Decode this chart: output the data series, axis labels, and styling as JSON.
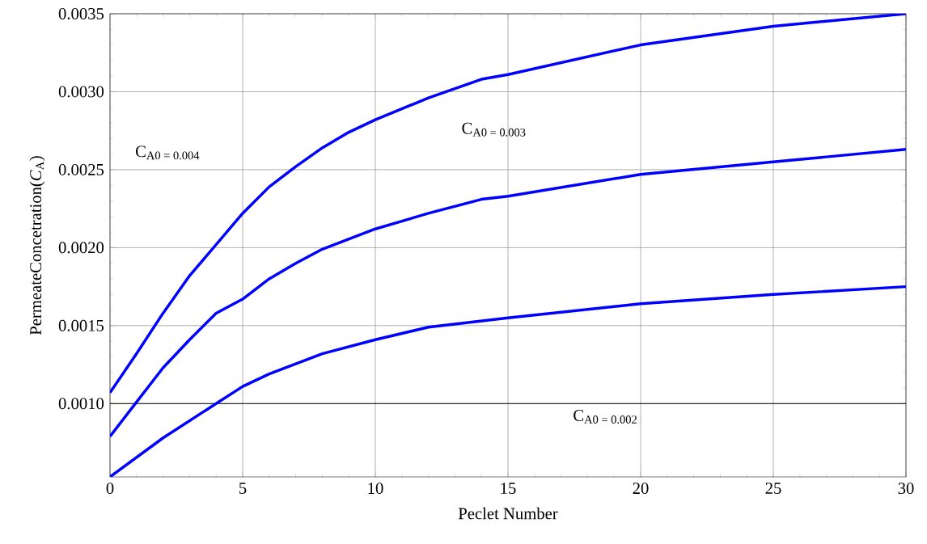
{
  "chart_data": {
    "type": "line",
    "xlabel": "Peclet Number",
    "ylabel": "PermeateConcetration(*C*$_{A}$)",
    "xlim": [
      0,
      30
    ],
    "xticks": [
      0,
      5,
      10,
      15,
      20,
      25,
      30
    ],
    "ylim": [
      0.00053,
      0.0035
    ],
    "yticks": [
      {
        "value": 0.001,
        "label": "0.0010"
      },
      {
        "value": 0.0015,
        "label": "0.0015"
      },
      {
        "value": 0.002,
        "label": "0.0020"
      },
      {
        "value": 0.0025,
        "label": "0.0025"
      },
      {
        "value": 0.003,
        "label": "0.0030"
      },
      {
        "value": 0.0035,
        "label": "0.0035"
      }
    ],
    "grid": true,
    "marker": "none",
    "line_style": "solid",
    "ref_lines": [
      {
        "axis": "y",
        "value": 0.001,
        "color": "#000000"
      }
    ],
    "annotations": [
      "C$_{A0 = 0.004}$",
      "C$_{A0 = 0.003}$",
      "C$_{A0 = 0.002}$"
    ],
    "series": [
      {
        "color": "#0000ff",
        "x": [
          0,
          1,
          2,
          3,
          4,
          5,
          6,
          7,
          8,
          9,
          10,
          12,
          14,
          15,
          20,
          25,
          30
        ],
        "values": [
          0.00107,
          0.00132,
          0.00158,
          0.00182,
          0.00202,
          0.00222,
          0.00239,
          0.00252,
          0.00264,
          0.00274,
          0.00282,
          0.00296,
          0.00308,
          0.00311,
          0.0033,
          0.00342,
          0.0035
        ]
      },
      {
        "color": "#0000ff",
        "x": [
          0,
          1,
          2,
          3,
          4,
          5,
          6,
          7,
          8,
          10,
          12,
          14,
          15,
          20,
          25,
          30
        ],
        "values": [
          0.00079,
          0.00101,
          0.00123,
          0.00141,
          0.00158,
          0.00167,
          0.0018,
          0.0019,
          0.00199,
          0.00212,
          0.00222,
          0.00231,
          0.00233,
          0.00247,
          0.00255,
          0.00263
        ]
      },
      {
        "color": "#0000ff",
        "x": [
          0,
          2,
          4,
          5,
          6,
          8,
          10,
          12,
          14,
          15,
          20,
          25,
          30
        ],
        "values": [
          0.00053,
          0.00078,
          0.001,
          0.00111,
          0.00119,
          0.00132,
          0.00141,
          0.00149,
          0.00153,
          0.00155,
          0.00164,
          0.0017,
          0.00175
        ]
      }
    ]
  }
}
